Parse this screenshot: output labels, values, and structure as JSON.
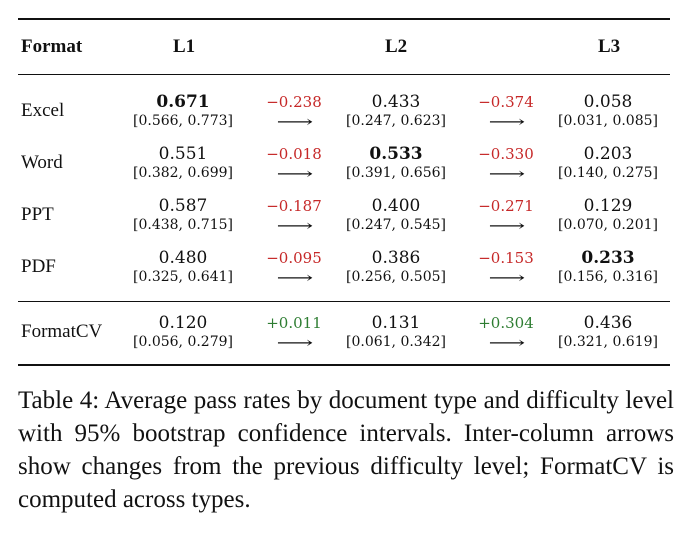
{
  "table": {
    "headers": {
      "format": "Format",
      "l1": "L1",
      "l2": "L2",
      "l3": "L3"
    },
    "arrow_glyph": "⟶",
    "rows": [
      {
        "name": "Excel",
        "l1": {
          "value": "0.671",
          "ci": "[0.566, 0.773]",
          "best": true
        },
        "d12": {
          "value": "−0.238",
          "sign": "neg"
        },
        "l2": {
          "value": "0.433",
          "ci": "[0.247, 0.623]",
          "best": false
        },
        "d23": {
          "value": "−0.374",
          "sign": "neg"
        },
        "l3": {
          "value": "0.058",
          "ci": "[0.031, 0.085]",
          "best": false
        }
      },
      {
        "name": "Word",
        "l1": {
          "value": "0.551",
          "ci": "[0.382, 0.699]",
          "best": false
        },
        "d12": {
          "value": "−0.018",
          "sign": "neg"
        },
        "l2": {
          "value": "0.533",
          "ci": "[0.391, 0.656]",
          "best": true
        },
        "d23": {
          "value": "−0.330",
          "sign": "neg"
        },
        "l3": {
          "value": "0.203",
          "ci": "[0.140, 0.275]",
          "best": false
        }
      },
      {
        "name": "PPT",
        "l1": {
          "value": "0.587",
          "ci": "[0.438, 0.715]",
          "best": false
        },
        "d12": {
          "value": "−0.187",
          "sign": "neg"
        },
        "l2": {
          "value": "0.400",
          "ci": "[0.247, 0.545]",
          "best": false
        },
        "d23": {
          "value": "−0.271",
          "sign": "neg"
        },
        "l3": {
          "value": "0.129",
          "ci": "[0.070, 0.201]",
          "best": false
        }
      },
      {
        "name": "PDF",
        "l1": {
          "value": "0.480",
          "ci": "[0.325, 0.641]",
          "best": false
        },
        "d12": {
          "value": "−0.095",
          "sign": "neg"
        },
        "l2": {
          "value": "0.386",
          "ci": "[0.256, 0.505]",
          "best": false
        },
        "d23": {
          "value": "−0.153",
          "sign": "neg"
        },
        "l3": {
          "value": "0.233",
          "ci": "[0.156, 0.316]",
          "best": true
        }
      }
    ],
    "summary_row": {
      "name": "FormatCV",
      "l1": {
        "value": "0.120",
        "ci": "[0.056, 0.279]",
        "best": false
      },
      "d12": {
        "value": "+0.011",
        "sign": "pos"
      },
      "l2": {
        "value": "0.131",
        "ci": "[0.061, 0.342]",
        "best": false
      },
      "d23": {
        "value": "+0.304",
        "sign": "pos"
      },
      "l3": {
        "value": "0.436",
        "ci": "[0.321, 0.619]",
        "best": false
      }
    }
  },
  "caption": "Table 4: Average pass rates by document type and difficulty level with 95% bootstrap confidence intervals. Inter-column arrows show changes from the previous difficulty level; FormatCV is computed across types.",
  "colors": {
    "negative": "#c62828",
    "positive": "#2e7d32",
    "text": "#111111"
  }
}
